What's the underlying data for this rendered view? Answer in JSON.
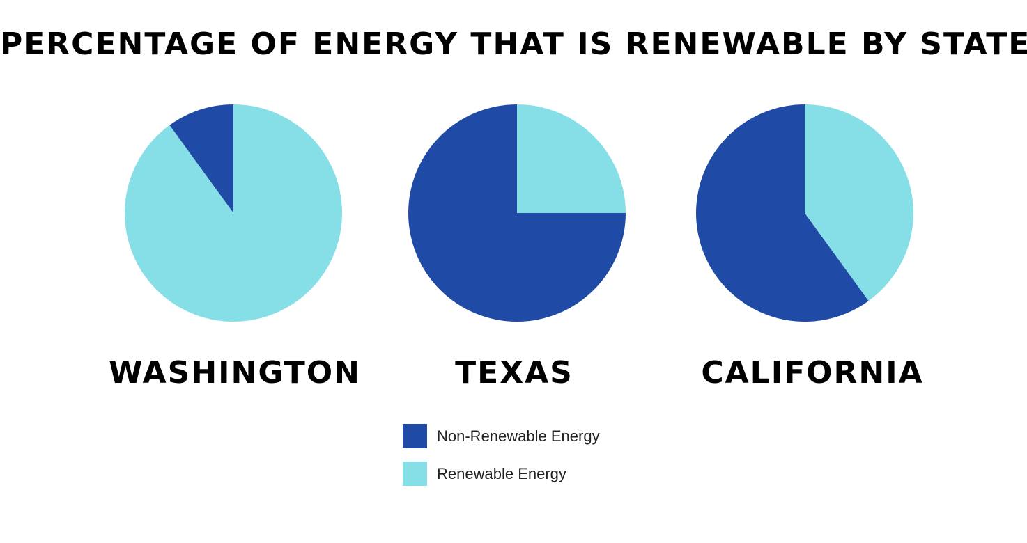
{
  "colors": {
    "non_renewable": "#1f4aa6",
    "renewable": "#86dfe6"
  },
  "chart_data": {
    "type": "pie",
    "title": "PERCENTAGE OF ENERGY THAT IS RENEWABLE BY STATE",
    "categories": [
      "Non-Renewable Energy",
      "Renewable Energy"
    ],
    "legend_position": "bottom-center",
    "pies": [
      {
        "name": "WASHINGTON",
        "values": [
          10,
          90
        ]
      },
      {
        "name": "TEXAS",
        "values": [
          75,
          25
        ]
      },
      {
        "name": "CALIFORNIA",
        "values": [
          60,
          40
        ]
      }
    ]
  },
  "legend": {
    "items": [
      {
        "label": "Non-Renewable Energy",
        "color_key": "non_renewable"
      },
      {
        "label": "Renewable Energy",
        "color_key": "renewable"
      }
    ]
  }
}
